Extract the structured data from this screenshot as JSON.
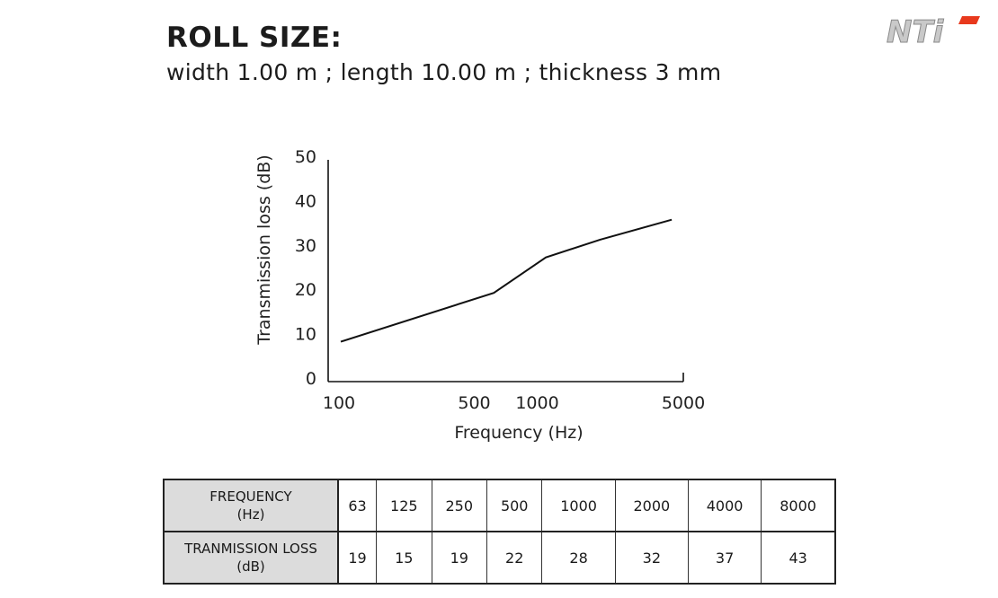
{
  "header": {
    "title": "ROLL SIZE:",
    "subtitle": "width 1.00 m ; length 10.00 m ; thickness 3 mm",
    "logo_text": "NTi"
  },
  "colors": {
    "line": "#111111",
    "logo_red": "#e8391d",
    "logo_silver": "#c9c9c9",
    "table_header_bg": "#dcdcdc"
  },
  "chart_data": {
    "type": "line",
    "xlabel": "Frequency (Hz)",
    "ylabel": "Transmission loss (dB)",
    "x_scale": "log",
    "xlim": [
      100,
      5000
    ],
    "ylim": [
      0,
      50
    ],
    "x_ticks": [
      100,
      500,
      1000,
      5000
    ],
    "y_ticks": [
      0,
      10,
      20,
      30,
      40,
      50
    ],
    "grid": false,
    "series": [
      {
        "x": [
          100,
          620,
          1100,
          2000,
          4400
        ],
        "values": [
          9,
          20,
          28,
          32,
          36.5
        ]
      }
    ]
  },
  "table": {
    "rows": [
      {
        "label_line1": "FREQUENCY",
        "label_line2": "(Hz)",
        "cells": [
          "63",
          "125",
          "250",
          "500",
          "1000",
          "2000",
          "4000",
          "8000"
        ]
      },
      {
        "label_line1": "TRANMISSION LOSS",
        "label_line2": "(dB)",
        "cells": [
          "19",
          "15",
          "19",
          "22",
          "28",
          "32",
          "37",
          "43"
        ]
      }
    ]
  }
}
